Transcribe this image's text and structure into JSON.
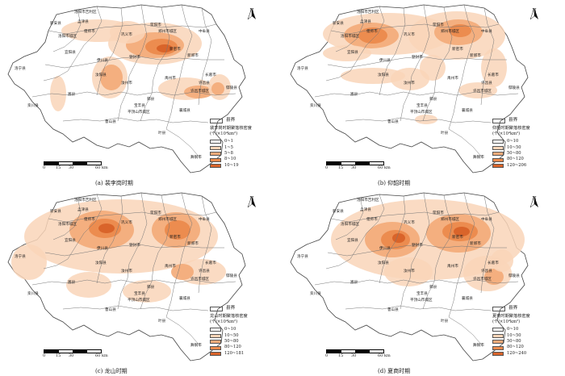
{
  "panels": [
    {
      "id": "a",
      "caption": "(a) 裴李岗时期",
      "legend_title": "裴李岗时期聚落核密度",
      "legend_unit": "(个/×10⁴km²)",
      "classes": [
        "0~1",
        "1~5",
        "5~8",
        "8~10",
        "10~19"
      ]
    },
    {
      "id": "b",
      "caption": "(b) 仰韶时期",
      "legend_title": "仰韶时期聚落核密度",
      "legend_unit": "(个/×10⁴km²)",
      "classes": [
        "0~10",
        "10~50",
        "50~80",
        "80~120",
        "120~206"
      ]
    },
    {
      "id": "c",
      "caption": "(c) 龙山时期",
      "legend_title": "龙山时期聚落核密度",
      "legend_unit": "(个/×10⁴km²)",
      "classes": [
        "0~10",
        "10~50",
        "50~80",
        "80~120",
        "120~181"
      ]
    },
    {
      "id": "d",
      "caption": "(d) 夏商时期",
      "legend_title": "夏商时期聚落核密度",
      "legend_unit": "(个/×10⁴km²)",
      "classes": [
        "0~10",
        "10~50",
        "50~80",
        "80~120",
        "120~240"
      ]
    }
  ],
  "boundary_label": "县界",
  "class_colors": [
    "#ffffff",
    "#f9d5b8",
    "#f3ab7a",
    "#eb8a4d",
    "#d9642a"
  ],
  "scale": {
    "ticks": [
      "0",
      "15",
      "30",
      "60 km"
    ]
  },
  "north_label": "N",
  "counties": {
    "luoyang_zone": "洛阳市城区",
    "mengjin": "孟津县",
    "xinan": "新安县",
    "luoning": "洛宁县",
    "yiyang": "宜阳县",
    "yanshi": "偃师市",
    "gongyi": "巩义市",
    "xingyang": "荥阳市",
    "zhengzhou_zone": "郑州市城区",
    "zhongmu": "中牟县",
    "xinzheng": "新郑市",
    "xinmi": "新密市",
    "dengfeng": "登封市",
    "yichuan": "伊川县",
    "ruyang": "汝阳县",
    "songxian": "嵩县",
    "luanchuan": "栾川县",
    "ruzhou": "汝州市",
    "yuzhou": "禹州市",
    "changge": "长葛市",
    "xuchang": "许昌县",
    "xuchang_zone": "许昌市城区",
    "yanling": "鄢陵县",
    "jiaxian": "郏县",
    "baofeng": "宝丰县",
    "pingdingshan_zone": "平顶山市城区",
    "lushan": "鲁山县",
    "xiangcheng": "襄城县",
    "yexian": "叶县",
    "wugang": "舞钢市",
    "jiaozuo": "洛阳市吉利区"
  }
}
